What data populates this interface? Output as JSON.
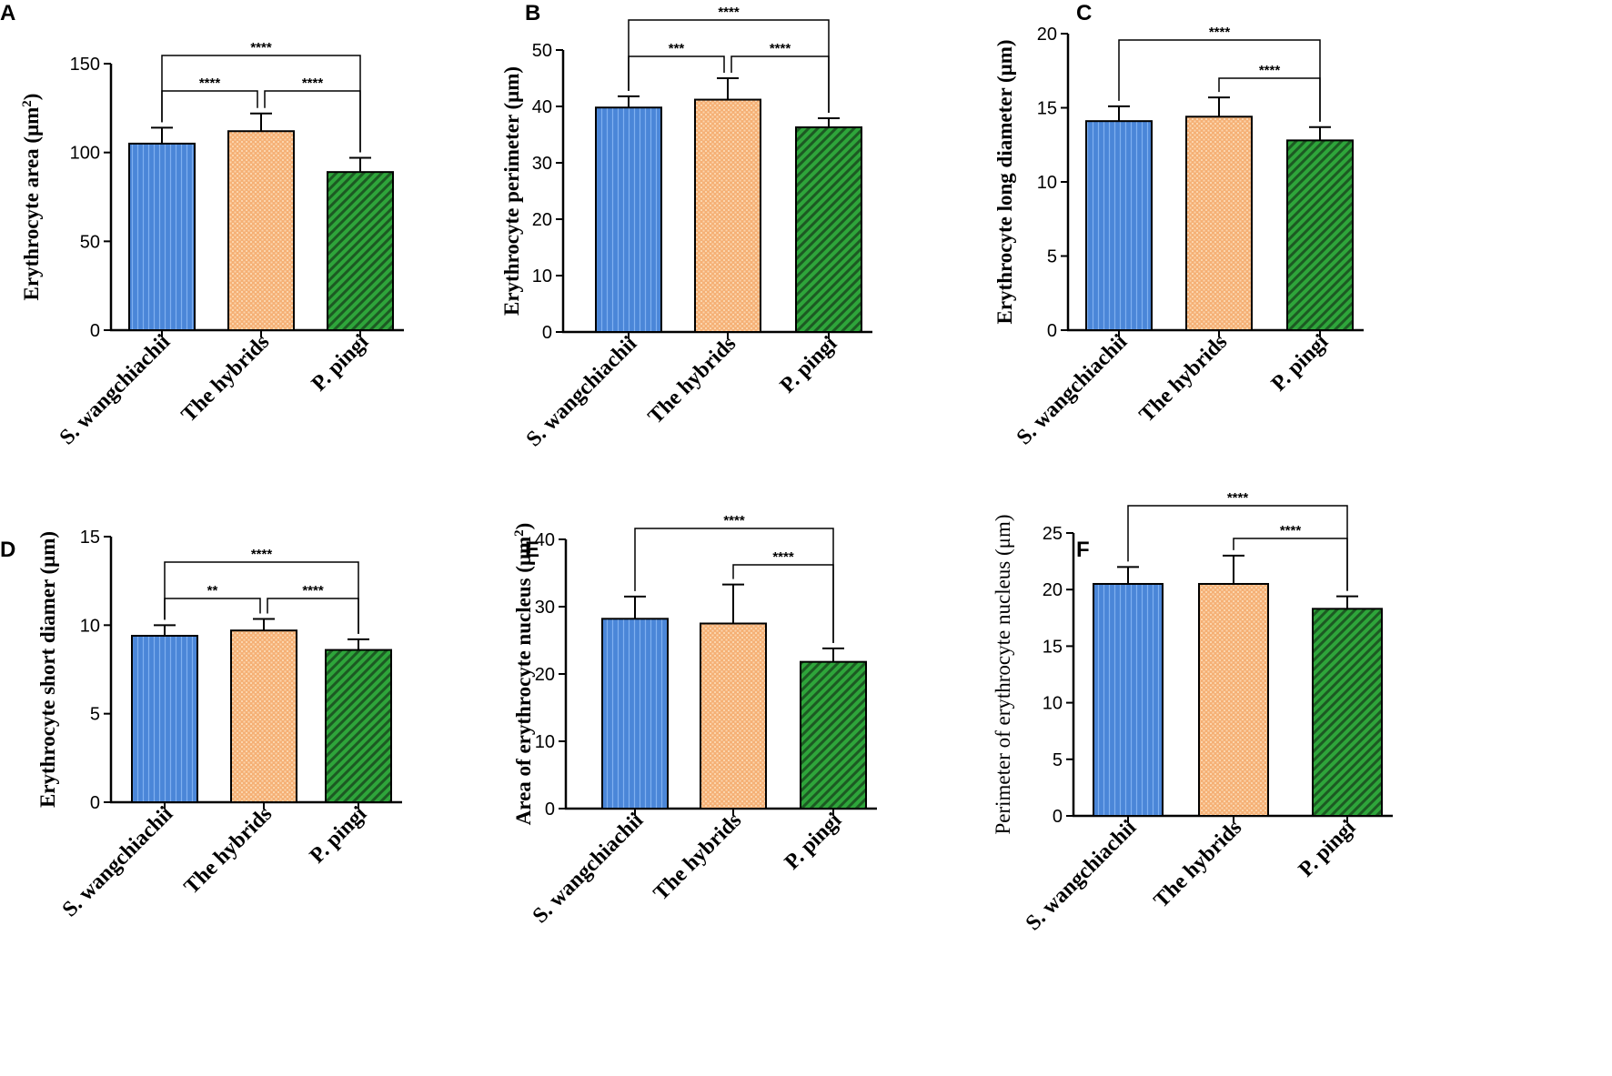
{
  "categories": [
    "S. wangchiachii",
    "The hybrids",
    "P. pingi"
  ],
  "colors": {
    "s_wangchiachii": "#4a86d8",
    "hybrids": "#f5b075",
    "p_pingi": "#2ea53a",
    "axis": "#000000"
  },
  "chart_data": [
    {
      "panel": "A",
      "type": "bar",
      "title": "",
      "xlabel": "",
      "ylabel": "Erythrocyte area (μm",
      "ylabel_sup": "2",
      "ylabel_suffix": ")",
      "ylabel_bold": true,
      "ylim": [
        0,
        150
      ],
      "ticks": [
        0,
        50,
        100,
        150
      ],
      "values": [
        105,
        112,
        89
      ],
      "errors": [
        9,
        10,
        8
      ],
      "significance": [
        {
          "from": 0,
          "to": 1,
          "label": "****",
          "level": 1
        },
        {
          "from": 1,
          "to": 2,
          "label": "****",
          "level": 1
        },
        {
          "from": 0,
          "to": 2,
          "label": "****",
          "level": 2
        }
      ]
    },
    {
      "panel": "B",
      "type": "bar",
      "title": "",
      "xlabel": "",
      "ylabel": "Erythrocyte perimeter (μm)",
      "ylabel_sup": "",
      "ylabel_suffix": "",
      "ylabel_bold": true,
      "ylim": [
        0,
        50
      ],
      "ticks": [
        0,
        10,
        20,
        30,
        40,
        50
      ],
      "values": [
        39.8,
        41.2,
        36.3
      ],
      "errors": [
        2.0,
        3.8,
        1.6
      ],
      "significance": [
        {
          "from": 0,
          "to": 1,
          "label": "***",
          "level": 1
        },
        {
          "from": 1,
          "to": 2,
          "label": "****",
          "level": 1
        },
        {
          "from": 0,
          "to": 2,
          "label": "****",
          "level": 2
        }
      ]
    },
    {
      "panel": "C",
      "type": "bar",
      "title": "",
      "xlabel": "",
      "ylabel": "Erythrocyte long diameter (μm)",
      "ylabel_sup": "",
      "ylabel_suffix": "",
      "ylabel_bold": true,
      "ylim": [
        0,
        20
      ],
      "ticks": [
        0,
        5,
        10,
        15,
        20
      ],
      "values": [
        14.1,
        14.4,
        12.8
      ],
      "errors": [
        1.0,
        1.3,
        0.9
      ],
      "significance": [
        {
          "from": 1,
          "to": 2,
          "label": "****",
          "level": 1
        },
        {
          "from": 0,
          "to": 2,
          "label": "****",
          "level": 2
        }
      ]
    },
    {
      "panel": "D",
      "type": "bar",
      "title": "",
      "xlabel": "",
      "ylabel": "Erythrocyte short diamer (μm)",
      "ylabel_sup": "",
      "ylabel_suffix": "",
      "ylabel_bold": true,
      "ylim": [
        0,
        15
      ],
      "ticks": [
        0,
        5,
        10,
        15
      ],
      "values": [
        9.4,
        9.7,
        8.6
      ],
      "errors": [
        0.6,
        0.65,
        0.6
      ],
      "significance": [
        {
          "from": 0,
          "to": 1,
          "label": "**",
          "level": 1
        },
        {
          "from": 1,
          "to": 2,
          "label": "****",
          "level": 1
        },
        {
          "from": 0,
          "to": 2,
          "label": "****",
          "level": 2
        }
      ]
    },
    {
      "panel": "E",
      "type": "bar",
      "title": "",
      "xlabel": "",
      "ylabel": "Area of erythrocyte nucleus (μm",
      "ylabel_sup": "2",
      "ylabel_suffix": ")",
      "ylabel_bold": true,
      "ylim": [
        0,
        40
      ],
      "ticks": [
        0,
        10,
        20,
        30,
        40
      ],
      "values": [
        28.2,
        27.5,
        21.8
      ],
      "errors": [
        3.3,
        5.8,
        2.0
      ],
      "significance": [
        {
          "from": 1,
          "to": 2,
          "label": "****",
          "level": 1
        },
        {
          "from": 0,
          "to": 2,
          "label": "****",
          "level": 2
        }
      ]
    },
    {
      "panel": "F",
      "type": "bar",
      "title": "",
      "xlabel": "",
      "ylabel": "Perimeter of erythrocyte nucleus (μm)",
      "ylabel_sup": "",
      "ylabel_suffix": "",
      "ylabel_bold": false,
      "ylim": [
        0,
        25
      ],
      "ticks": [
        0,
        5,
        10,
        15,
        20,
        25
      ],
      "values": [
        20.5,
        20.5,
        18.3
      ],
      "errors": [
        1.5,
        2.5,
        1.1
      ],
      "significance": [
        {
          "from": 1,
          "to": 2,
          "label": "****",
          "level": 1
        },
        {
          "from": 0,
          "to": 2,
          "label": "****",
          "level": 2
        }
      ]
    }
  ]
}
